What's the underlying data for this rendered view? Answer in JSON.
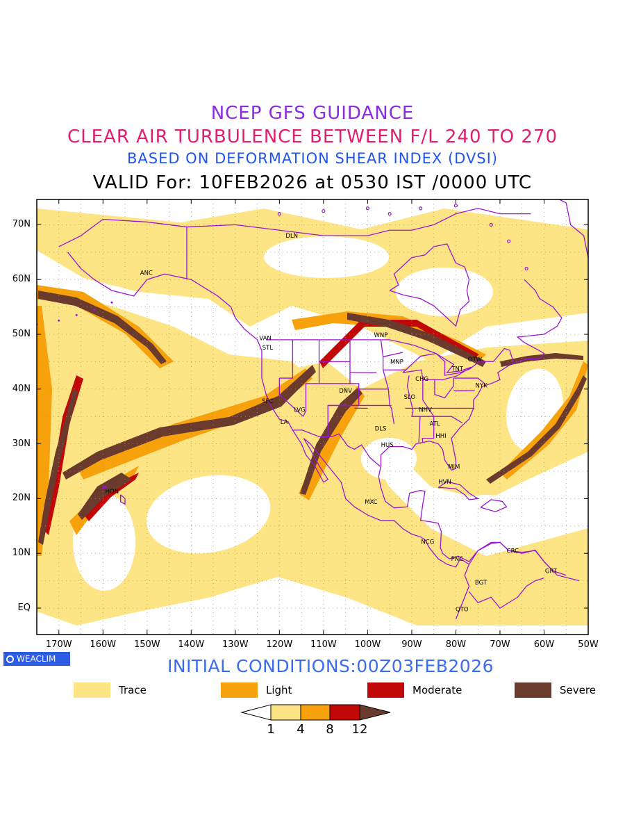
{
  "header": {
    "line1": "NCEP GFS GUIDANCE",
    "line2": "CLEAR AIR TURBULENCE BETWEEN F/L 240 TO 270",
    "line3": "BASED ON DEFORMATION SHEAR INDEX (DVSI)",
    "line4": "VALID For: 10FEB2026 at 0530 IST /0000 UTC"
  },
  "axes": {
    "lat_labels": [
      "70N",
      "60N",
      "50N",
      "40N",
      "30N",
      "20N",
      "10N",
      "EQ"
    ],
    "lon_labels": [
      "170W",
      "160W",
      "150W",
      "140W",
      "130W",
      "120W",
      "110W",
      "100W",
      "90W",
      "80W",
      "70W",
      "60W",
      "50W"
    ]
  },
  "stations": [
    {
      "id": "DLN"
    },
    {
      "id": "ANC"
    },
    {
      "id": "VAN"
    },
    {
      "id": "STL"
    },
    {
      "id": "WNP"
    },
    {
      "id": "MNP"
    },
    {
      "id": "OTW"
    },
    {
      "id": "TNT"
    },
    {
      "id": "CHG"
    },
    {
      "id": "NYK"
    },
    {
      "id": "DNV"
    },
    {
      "id": "SFC"
    },
    {
      "id": "LVG"
    },
    {
      "id": "SLO"
    },
    {
      "id": "LA"
    },
    {
      "id": "NHV"
    },
    {
      "id": "ATL"
    },
    {
      "id": "DLS"
    },
    {
      "id": "HHI"
    },
    {
      "id": "HUS"
    },
    {
      "id": "MIM"
    },
    {
      "id": "HON"
    },
    {
      "id": "HVN"
    },
    {
      "id": "MXC"
    },
    {
      "id": "NCG"
    },
    {
      "id": "CRC"
    },
    {
      "id": "PNC"
    },
    {
      "id": "GRT"
    },
    {
      "id": "BGT"
    },
    {
      "id": "QTO"
    }
  ],
  "branding": {
    "label": "WEACLIM"
  },
  "initial_conditions": "INITIAL CONDITIONS:00Z03FEB2026",
  "legend": [
    {
      "label": "Trace",
      "color": "#fde586"
    },
    {
      "label": "Light",
      "color": "#f7a10c"
    },
    {
      "label": "Moderate",
      "color": "#c10808"
    },
    {
      "label": "Severe",
      "color": "#6a3a2c"
    }
  ],
  "colorbar": {
    "ticks": [
      "1",
      "4",
      "8",
      "12"
    ],
    "colors": [
      "#ffffff",
      "#fde586",
      "#f7a10c",
      "#c10808",
      "#6a3a2c"
    ]
  },
  "colors": {
    "coastline": "#9b16cf",
    "grid": "#9a9a9a"
  }
}
